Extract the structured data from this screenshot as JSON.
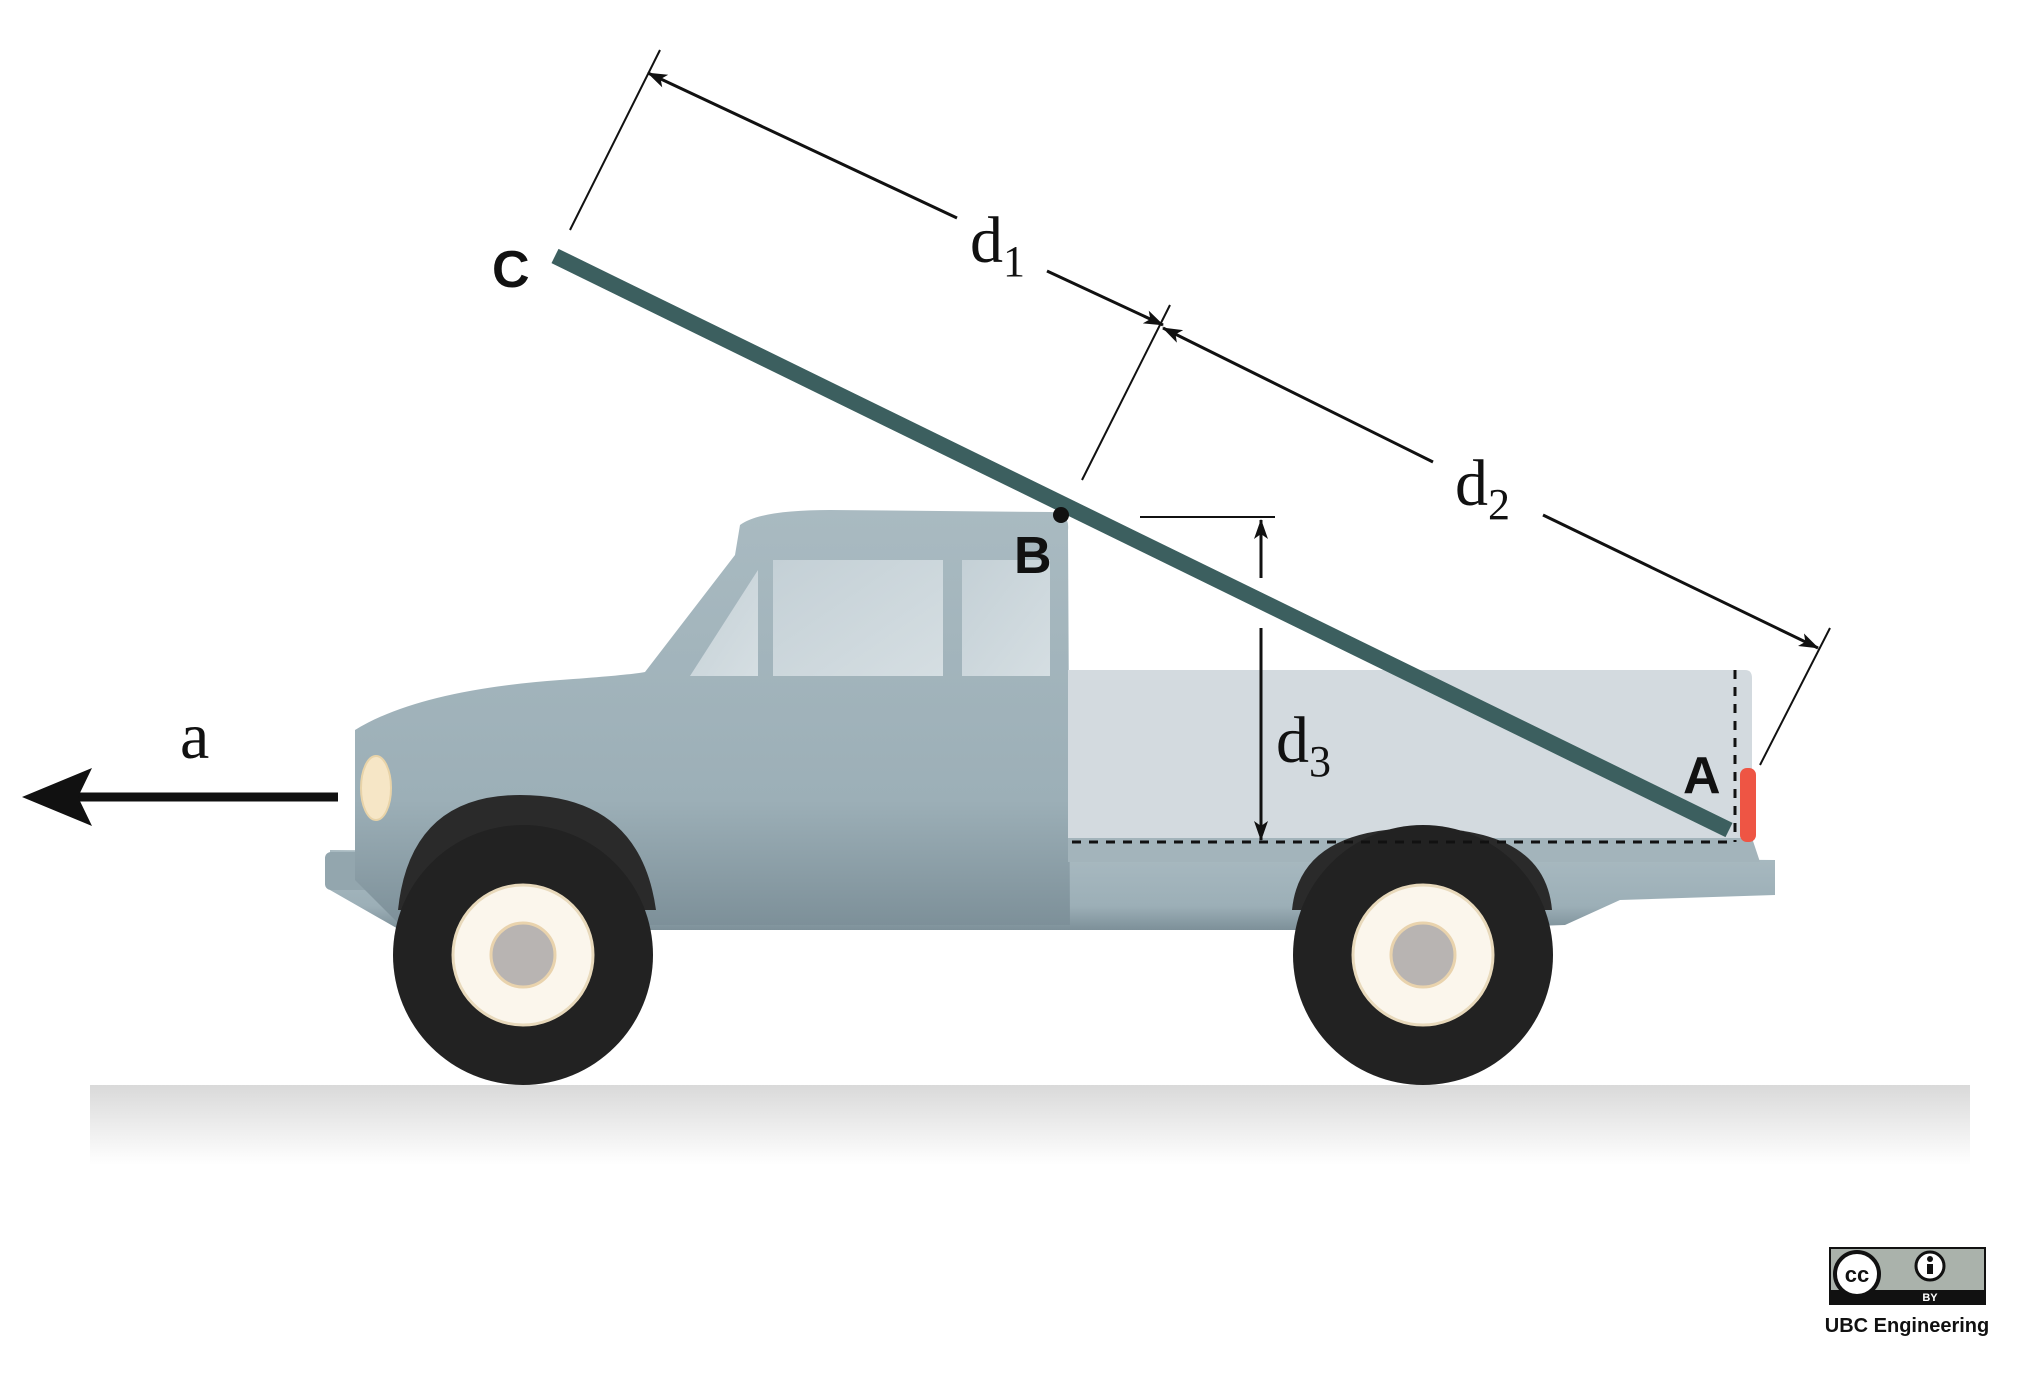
{
  "diagram": {
    "points": {
      "a_label": "A",
      "b_label": "B",
      "c_label": "C"
    },
    "dimensions": {
      "d1": {
        "main": "d",
        "sub": "1"
      },
      "d2": {
        "main": "d",
        "sub": "2"
      },
      "d3": {
        "main": "d",
        "sub": "3"
      }
    },
    "acceleration_label": "a",
    "license": {
      "cc_text": "cc",
      "by_text": "BY",
      "credit": "UBC Engineering"
    },
    "colors": {
      "truck_body": "#a5b6bd",
      "truck_bed": "#d3dadf",
      "beam": "#3c5f5f",
      "tire": "#222222",
      "rim": "#fbf6ec",
      "hub": "#b8b4b2",
      "tail_light": "#ee5544",
      "headlight": "#f6e6c6"
    }
  }
}
